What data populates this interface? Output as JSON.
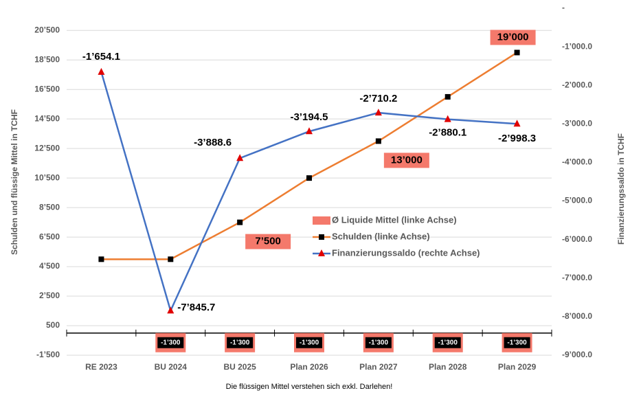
{
  "chart_data": {
    "type": "combo",
    "y_label": "Schulden und flüssige Mittel in TCHF",
    "y2_label": "Finanzierungssaldo in TCHF",
    "note": "Die flüssigen Mittel verstehen sich exkl. Darlehen!",
    "categories": [
      "RE 2023",
      "BU 2024",
      "BU 2025",
      "Plan 2026",
      "Plan 2027",
      "Plan 2028",
      "Plan 2029"
    ],
    "ylim": [
      -1500,
      22000
    ],
    "yticks": [
      {
        "value": -1500,
        "label": "-1’500"
      },
      500,
      {
        "value": 2500,
        "label": "2’500"
      },
      {
        "value": 4500,
        "label": "4’500"
      },
      {
        "value": 6500,
        "label": "6’500"
      },
      {
        "value": 8500,
        "label": "8’500"
      },
      {
        "value": 10500,
        "label": "10’500"
      },
      {
        "value": 12500,
        "label": "12’500"
      },
      {
        "value": 14500,
        "label": "14’500"
      },
      {
        "value": 16500,
        "label": "16’500"
      },
      {
        "value": 18500,
        "label": "18’500"
      },
      {
        "value": 20500,
        "label": "20’500"
      }
    ],
    "y2lim": [
      -9000,
      0
    ],
    "y2ticks": [
      {
        "value": -9000,
        "label": "-9’000.0"
      },
      {
        "value": -8000,
        "label": "-8’000.0"
      },
      {
        "value": -7000,
        "label": "-7’000.0"
      },
      {
        "value": -6000,
        "label": "-6’000.0"
      },
      {
        "value": -5000,
        "label": "-5’000.0"
      },
      {
        "value": -4000,
        "label": "-4’000.0"
      },
      {
        "value": -3000,
        "label": "-3’000.0"
      },
      {
        "value": -2000,
        "label": "-2’000.0"
      },
      {
        "value": -1000,
        "label": "-1’000.0"
      },
      {
        "value": 0,
        "label": "-"
      }
    ],
    "grid": true,
    "legend": "right",
    "series": [
      {
        "name": "Ø Liquide Mittel (linke Achse)",
        "kind": "bar",
        "color": "#f4796b",
        "values": [
          null,
          -1300,
          -1300,
          -1300,
          -1300,
          -1300,
          -1300
        ],
        "value_labels": [
          null,
          "-1’300",
          "-1’300",
          "-1’300",
          "-1’300",
          "-1’300",
          "-1’300"
        ]
      },
      {
        "name": "Schulden (linke Achse)",
        "kind": "line",
        "color": "#ed7d31",
        "marker_color": "#000000",
        "values": [
          5000,
          5000,
          7500,
          10500,
          13000,
          16000,
          19000
        ],
        "value_labels": [
          null,
          null,
          "7’500",
          null,
          "13’000",
          null,
          "19’000"
        ]
      },
      {
        "name": "Finanzierungssaldo (rechte Achse)",
        "kind": "line",
        "axis": "y2",
        "color": "#4472c4",
        "marker_color": "#e00000",
        "values": [
          -1654.1,
          -7845.7,
          -3888.6,
          -3194.5,
          -2710.2,
          -2880.1,
          -2998.3
        ],
        "value_labels": [
          "-1’654.1",
          "-7’845.7",
          "-3’888.6",
          "-3’194.5",
          "-2’710.2",
          "-2’880.1",
          "-2’998.3"
        ]
      }
    ]
  }
}
